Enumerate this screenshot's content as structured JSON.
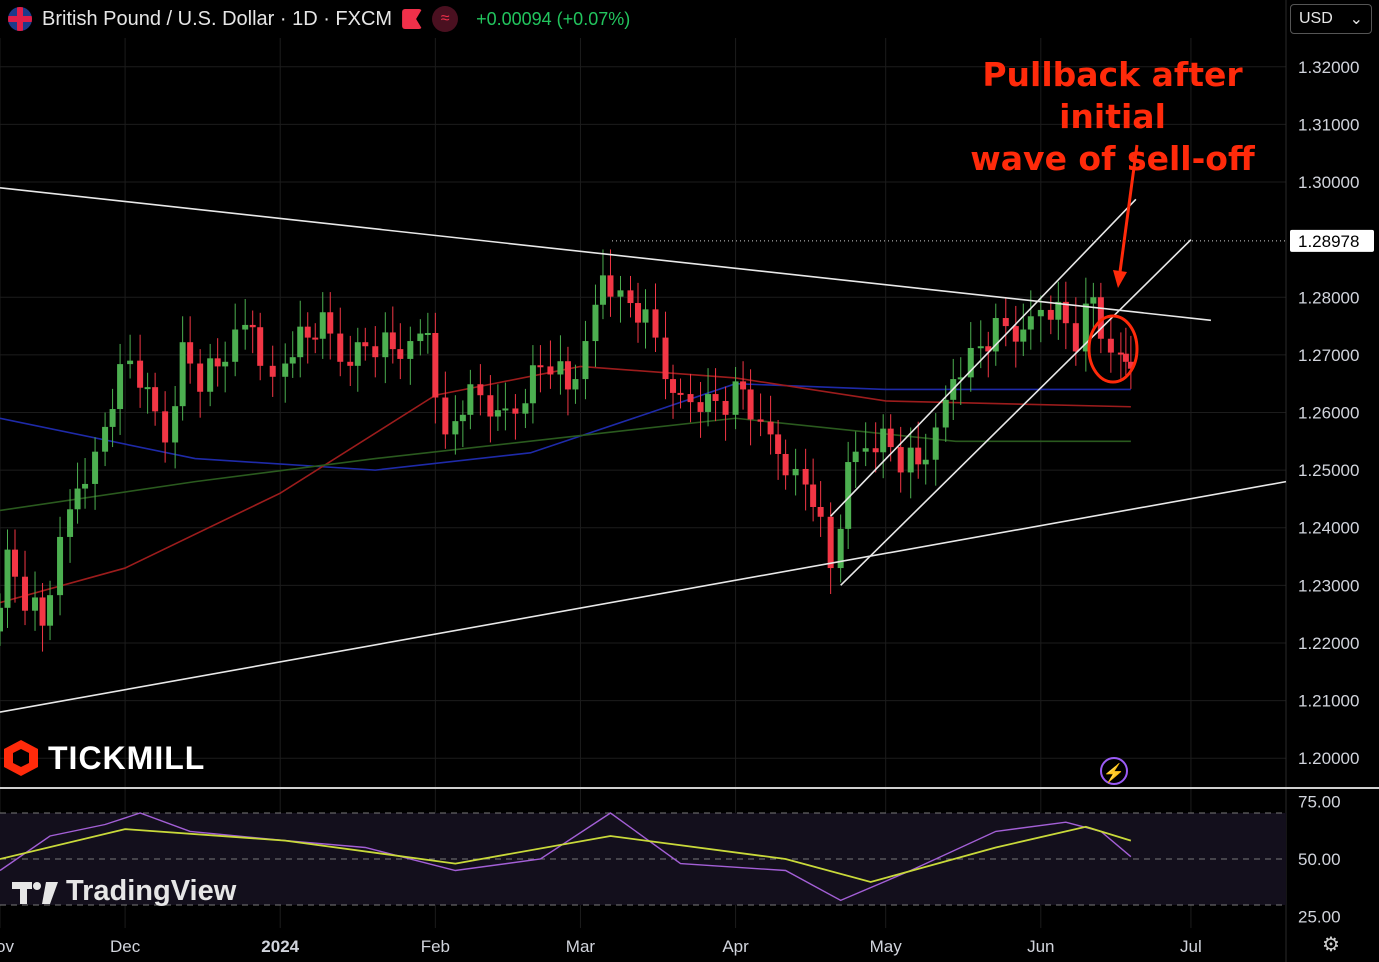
{
  "header": {
    "symbol_title": "British Pound / U.S. Dollar · 1D · FXCM",
    "change_text": "+0.00094 (+0.07%)",
    "currency_select": "USD",
    "currency_caret": "⌄"
  },
  "annotation": {
    "line1": "Pullback after initial",
    "line2": "wave of sell-off"
  },
  "branding": {
    "broker_logo_text": "TICKMILL",
    "platform_logo_text": "TradingView"
  },
  "colors": {
    "up": "#4caf50",
    "down": "#f23645",
    "annotation": "#ff2a0a",
    "ma_blue": "#1e2aa8",
    "ma_red": "#9c1c1c",
    "ma_green": "#2a5a1e",
    "rsi_line": "#a35fd6",
    "rsi_ma": "#c9d93a"
  },
  "chart_data": [
    {
      "type": "candlestick",
      "x_tick_labels": [
        "ov",
        "Dec",
        "2024",
        "Feb",
        "Mar",
        "Apr",
        "May",
        "Jun",
        "Jul"
      ],
      "y_tick_labels": [
        "1.32000",
        "1.31000",
        "1.30000",
        "1.28000",
        "1.27000",
        "1.26000",
        "1.25000",
        "1.24000",
        "1.23000",
        "1.22000",
        "1.21000",
        "1.20000"
      ],
      "ylim": [
        1.195,
        1.325
      ],
      "last_price_label": "1.28978",
      "last_price_value": 1.28978,
      "x_range": [
        "2023-11-06",
        "2024-07-20"
      ],
      "ohlc_close_path": [
        [
          "2023-11-06",
          1.222
        ],
        [
          "2023-11-09",
          1.235
        ],
        [
          "2023-11-13",
          1.228
        ],
        [
          "2023-11-16",
          1.223
        ],
        [
          "2023-11-20",
          1.236
        ],
        [
          "2023-11-23",
          1.248
        ],
        [
          "2023-11-27",
          1.252
        ],
        [
          "2023-11-30",
          1.263
        ],
        [
          "2023-12-04",
          1.269
        ],
        [
          "2023-12-07",
          1.262
        ],
        [
          "2023-12-11",
          1.256
        ],
        [
          "2023-12-14",
          1.271
        ],
        [
          "2023-12-18",
          1.266
        ],
        [
          "2023-12-21",
          1.268
        ],
        [
          "2023-12-25",
          1.272
        ],
        [
          "2023-12-28",
          1.276
        ],
        [
          "2024-01-02",
          1.265
        ],
        [
          "2024-01-05",
          1.272
        ],
        [
          "2024-01-08",
          1.273
        ],
        [
          "2024-01-11",
          1.275
        ],
        [
          "2024-01-15",
          1.27
        ],
        [
          "2024-01-18",
          1.271
        ],
        [
          "2024-01-22",
          1.272
        ],
        [
          "2024-01-25",
          1.271
        ],
        [
          "2024-01-29",
          1.27
        ],
        [
          "2024-02-01",
          1.275
        ],
        [
          "2024-02-05",
          1.255
        ],
        [
          "2024-02-08",
          1.262
        ],
        [
          "2024-02-12",
          1.263
        ],
        [
          "2024-02-15",
          1.258
        ],
        [
          "2024-02-19",
          1.261
        ],
        [
          "2024-02-22",
          1.267
        ],
        [
          "2024-02-26",
          1.269
        ],
        [
          "2024-02-29",
          1.264
        ],
        [
          "2024-03-04",
          1.27
        ],
        [
          "2024-03-07",
          1.285
        ],
        [
          "2024-03-11",
          1.28
        ],
        [
          "2024-03-14",
          1.278
        ],
        [
          "2024-03-18",
          1.273
        ],
        [
          "2024-03-21",
          1.261
        ],
        [
          "2024-03-25",
          1.263
        ],
        [
          "2024-03-28",
          1.262
        ],
        [
          "2024-04-01",
          1.262
        ],
        [
          "2024-04-04",
          1.264
        ],
        [
          "2024-04-08",
          1.256
        ],
        [
          "2024-04-11",
          1.254
        ],
        [
          "2024-04-15",
          1.249
        ],
        [
          "2024-04-18",
          1.246
        ],
        [
          "2024-04-22",
          1.233
        ],
        [
          "2024-04-25",
          1.249
        ],
        [
          "2024-04-29",
          1.255
        ],
        [
          "2024-05-02",
          1.256
        ],
        [
          "2024-05-06",
          1.252
        ],
        [
          "2024-05-09",
          1.251
        ],
        [
          "2024-05-13",
          1.255
        ],
        [
          "2024-05-16",
          1.267
        ],
        [
          "2024-05-20",
          1.27
        ],
        [
          "2024-05-23",
          1.273
        ],
        [
          "2024-05-27",
          1.275
        ],
        [
          "2024-05-30",
          1.272
        ],
        [
          "2024-06-03",
          1.279
        ],
        [
          "2024-06-06",
          1.278
        ],
        [
          "2024-06-10",
          1.273
        ],
        [
          "2024-06-13",
          1.28
        ],
        [
          "2024-06-17",
          1.268
        ],
        [
          "2024-06-19",
          1.27
        ]
      ],
      "moving_averages": [
        {
          "color": "blue",
          "points": [
            [
              "2023-11-06",
              1.259
            ],
            [
              "2023-12-15",
              1.252
            ],
            [
              "2024-01-20",
              1.25
            ],
            [
              "2024-02-20",
              1.253
            ],
            [
              "2024-03-15",
              1.26
            ],
            [
              "2024-04-01",
              1.265
            ],
            [
              "2024-05-01",
              1.264
            ],
            [
              "2024-06-19",
              1.264
            ]
          ]
        },
        {
          "color": "red",
          "points": [
            [
              "2023-11-06",
              1.227
            ],
            [
              "2023-12-01",
              1.233
            ],
            [
              "2024-01-01",
              1.246
            ],
            [
              "2024-02-01",
              1.263
            ],
            [
              "2024-03-01",
              1.268
            ],
            [
              "2024-04-01",
              1.266
            ],
            [
              "2024-05-01",
              1.262
            ],
            [
              "2024-06-19",
              1.261
            ]
          ]
        },
        {
          "color": "green",
          "points": [
            [
              "2023-11-06",
              1.243
            ],
            [
              "2023-12-15",
              1.248
            ],
            [
              "2024-01-20",
              1.252
            ],
            [
              "2024-03-01",
              1.256
            ],
            [
              "2024-04-01",
              1.259
            ],
            [
              "2024-05-15",
              1.255
            ],
            [
              "2024-06-19",
              1.255
            ]
          ]
        }
      ],
      "trendlines": [
        {
          "name": "upper-resistance",
          "from": [
            "2023-11-06",
            1.299
          ],
          "to": [
            "2024-07-05",
            1.276
          ]
        },
        {
          "name": "lower-support",
          "from": [
            "2023-11-06",
            1.208
          ],
          "to": [
            "2024-07-20",
            1.248
          ]
        },
        {
          "name": "channel-upper",
          "from": [
            "2024-04-20",
            1.242
          ],
          "to": [
            "2024-06-20",
            1.297
          ]
        },
        {
          "name": "channel-lower",
          "from": [
            "2024-04-22",
            1.23
          ],
          "to": [
            "2024-07-01",
            1.29
          ]
        }
      ]
    },
    {
      "type": "line",
      "name": "RSI",
      "y_tick_labels": [
        "75.00",
        "50.00",
        "25.00"
      ],
      "ylim": [
        20,
        80
      ],
      "bands": [
        70,
        50,
        30
      ],
      "rsi": [
        [
          "2023-11-06",
          45
        ],
        [
          "2023-11-16",
          60
        ],
        [
          "2023-11-27",
          65
        ],
        [
          "2023-12-04",
          70
        ],
        [
          "2023-12-14",
          62
        ],
        [
          "2024-01-02",
          58
        ],
        [
          "2024-01-18",
          55
        ],
        [
          "2024-02-05",
          45
        ],
        [
          "2024-02-22",
          50
        ],
        [
          "2024-03-07",
          70
        ],
        [
          "2024-03-21",
          48
        ],
        [
          "2024-04-11",
          45
        ],
        [
          "2024-04-22",
          32
        ],
        [
          "2024-05-06",
          45
        ],
        [
          "2024-05-23",
          62
        ],
        [
          "2024-06-06",
          66
        ],
        [
          "2024-06-13",
          62
        ],
        [
          "2024-06-19",
          51
        ]
      ],
      "rsi_ma": [
        [
          "2023-11-06",
          50
        ],
        [
          "2023-12-01",
          63
        ],
        [
          "2024-01-02",
          58
        ],
        [
          "2024-02-05",
          48
        ],
        [
          "2024-03-07",
          60
        ],
        [
          "2024-04-11",
          50
        ],
        [
          "2024-04-28",
          40
        ],
        [
          "2024-05-23",
          55
        ],
        [
          "2024-06-10",
          64
        ],
        [
          "2024-06-19",
          58
        ]
      ]
    }
  ]
}
